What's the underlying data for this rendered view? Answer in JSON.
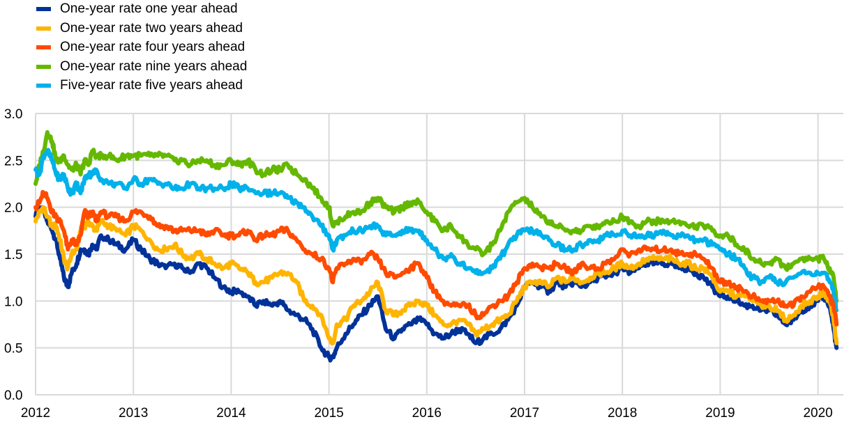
{
  "chart_data": {
    "type": "line",
    "title": "",
    "xlabel": "",
    "ylabel": "",
    "xlim": [
      2012.0,
      2020.25
    ],
    "ylim": [
      0.0,
      3.0
    ],
    "grid": true,
    "legend_position": "top-left",
    "x_ticks": [
      "2012",
      "2013",
      "2014",
      "2015",
      "2016",
      "2017",
      "2018",
      "2019",
      "2020"
    ],
    "y_ticks": [
      "0.0",
      "0.5",
      "1.0",
      "1.5",
      "2.0",
      "2.5",
      "3.0"
    ],
    "x": [
      2012.0,
      2012.04,
      2012.08,
      2012.12,
      2012.17,
      2012.21,
      2012.25,
      2012.29,
      2012.33,
      2012.37,
      2012.42,
      2012.46,
      2012.5,
      2012.54,
      2012.58,
      2012.62,
      2012.67,
      2012.75,
      2012.83,
      2012.92,
      2013.0,
      2013.08,
      2013.17,
      2013.25,
      2013.33,
      2013.42,
      2013.5,
      2013.58,
      2013.67,
      2013.75,
      2013.83,
      2013.92,
      2014.0,
      2014.08,
      2014.17,
      2014.25,
      2014.33,
      2014.42,
      2014.5,
      2014.58,
      2014.67,
      2014.75,
      2014.83,
      2014.92,
      2015.0,
      2015.04,
      2015.08,
      2015.17,
      2015.25,
      2015.33,
      2015.42,
      2015.5,
      2015.58,
      2015.67,
      2015.75,
      2015.83,
      2015.92,
      2016.0,
      2016.08,
      2016.17,
      2016.25,
      2016.33,
      2016.42,
      2016.5,
      2016.58,
      2016.67,
      2016.75,
      2016.83,
      2016.92,
      2017.0,
      2017.08,
      2017.17,
      2017.25,
      2017.33,
      2017.42,
      2017.5,
      2017.58,
      2017.67,
      2017.75,
      2017.83,
      2017.92,
      2018.0,
      2018.08,
      2018.17,
      2018.25,
      2018.33,
      2018.42,
      2018.5,
      2018.58,
      2018.67,
      2018.75,
      2018.83,
      2018.92,
      2019.0,
      2019.08,
      2019.17,
      2019.25,
      2019.33,
      2019.42,
      2019.5,
      2019.58,
      2019.67,
      2019.75,
      2019.83,
      2019.92,
      2020.0,
      2020.06,
      2020.12,
      2020.16,
      2020.19
    ],
    "series": [
      {
        "name": "One-year rate one year ahead",
        "color": "#003299",
        "values": [
          1.9,
          2.0,
          1.95,
          1.85,
          1.75,
          1.65,
          1.45,
          1.25,
          1.15,
          1.3,
          1.4,
          1.55,
          1.55,
          1.5,
          1.6,
          1.55,
          1.7,
          1.65,
          1.6,
          1.55,
          1.65,
          1.55,
          1.45,
          1.4,
          1.35,
          1.4,
          1.35,
          1.3,
          1.4,
          1.35,
          1.25,
          1.15,
          1.1,
          1.1,
          1.05,
          0.95,
          1.0,
          0.95,
          1.0,
          0.9,
          0.85,
          0.8,
          0.7,
          0.5,
          0.4,
          0.4,
          0.5,
          0.65,
          0.75,
          0.85,
          0.95,
          1.05,
          0.7,
          0.6,
          0.7,
          0.75,
          0.8,
          0.75,
          0.65,
          0.6,
          0.65,
          0.7,
          0.65,
          0.55,
          0.6,
          0.65,
          0.7,
          0.8,
          0.95,
          1.15,
          1.2,
          1.15,
          1.1,
          1.2,
          1.15,
          1.2,
          1.15,
          1.2,
          1.25,
          1.25,
          1.3,
          1.35,
          1.3,
          1.35,
          1.4,
          1.4,
          1.4,
          1.4,
          1.35,
          1.35,
          1.3,
          1.25,
          1.15,
          1.05,
          1.05,
          1.0,
          0.95,
          0.95,
          0.9,
          0.9,
          0.85,
          0.75,
          0.8,
          0.9,
          0.95,
          1.0,
          1.05,
          0.95,
          0.7,
          0.5
        ]
      },
      {
        "name": "One-year rate two years ahead",
        "color": "#FFB400",
        "values": [
          1.85,
          1.95,
          2.0,
          1.9,
          1.8,
          1.8,
          1.65,
          1.45,
          1.35,
          1.5,
          1.55,
          1.75,
          1.8,
          1.85,
          1.8,
          1.75,
          1.85,
          1.8,
          1.75,
          1.7,
          1.8,
          1.75,
          1.65,
          1.55,
          1.55,
          1.6,
          1.5,
          1.45,
          1.5,
          1.45,
          1.4,
          1.35,
          1.4,
          1.35,
          1.3,
          1.2,
          1.2,
          1.25,
          1.3,
          1.3,
          1.2,
          1.0,
          0.95,
          0.85,
          0.6,
          0.55,
          0.75,
          0.8,
          0.95,
          1.0,
          1.1,
          1.2,
          0.9,
          0.85,
          0.9,
          0.95,
          1.0,
          0.95,
          0.85,
          0.75,
          0.75,
          0.8,
          0.75,
          0.65,
          0.7,
          0.75,
          0.8,
          0.85,
          1.0,
          1.15,
          1.2,
          1.2,
          1.15,
          1.25,
          1.2,
          1.25,
          1.2,
          1.25,
          1.3,
          1.3,
          1.35,
          1.4,
          1.35,
          1.4,
          1.45,
          1.45,
          1.45,
          1.45,
          1.4,
          1.4,
          1.35,
          1.35,
          1.25,
          1.1,
          1.1,
          1.05,
          1.05,
          1.0,
          0.95,
          0.95,
          0.9,
          0.8,
          0.85,
          0.95,
          1.0,
          1.05,
          1.1,
          1.0,
          0.8,
          0.55
        ]
      },
      {
        "name": "One-year rate four years ahead",
        "color": "#FF4B00",
        "values": [
          2.0,
          2.05,
          2.15,
          2.1,
          1.95,
          1.9,
          1.85,
          1.75,
          1.55,
          1.65,
          1.6,
          1.7,
          1.95,
          1.9,
          1.95,
          1.85,
          1.95,
          1.9,
          1.9,
          1.85,
          1.95,
          1.95,
          1.9,
          1.8,
          1.8,
          1.75,
          1.75,
          1.75,
          1.75,
          1.7,
          1.75,
          1.7,
          1.7,
          1.7,
          1.75,
          1.65,
          1.7,
          1.7,
          1.75,
          1.75,
          1.65,
          1.55,
          1.5,
          1.45,
          1.35,
          1.2,
          1.35,
          1.4,
          1.45,
          1.4,
          1.5,
          1.45,
          1.3,
          1.25,
          1.3,
          1.35,
          1.4,
          1.25,
          1.1,
          1.0,
          0.95,
          0.95,
          0.95,
          0.85,
          0.85,
          0.95,
          1.0,
          1.05,
          1.2,
          1.35,
          1.4,
          1.35,
          1.35,
          1.4,
          1.35,
          1.3,
          1.4,
          1.35,
          1.35,
          1.4,
          1.45,
          1.55,
          1.5,
          1.55,
          1.55,
          1.55,
          1.55,
          1.55,
          1.5,
          1.5,
          1.5,
          1.45,
          1.35,
          1.2,
          1.2,
          1.15,
          1.1,
          1.05,
          1.0,
          1.0,
          1.0,
          0.95,
          0.95,
          1.05,
          1.1,
          1.15,
          1.15,
          1.05,
          0.95,
          0.75
        ]
      },
      {
        "name": "One-year rate nine years ahead",
        "color": "#65B800",
        "values": [
          2.25,
          2.45,
          2.6,
          2.8,
          2.7,
          2.5,
          2.5,
          2.55,
          2.45,
          2.4,
          2.45,
          2.35,
          2.5,
          2.45,
          2.6,
          2.55,
          2.55,
          2.55,
          2.5,
          2.55,
          2.55,
          2.55,
          2.55,
          2.55,
          2.55,
          2.5,
          2.5,
          2.45,
          2.5,
          2.5,
          2.45,
          2.45,
          2.5,
          2.45,
          2.5,
          2.4,
          2.35,
          2.4,
          2.4,
          2.45,
          2.35,
          2.3,
          2.2,
          2.1,
          2.0,
          1.8,
          1.85,
          1.9,
          1.95,
          1.95,
          2.05,
          2.1,
          2.0,
          1.95,
          2.0,
          2.05,
          2.05,
          1.95,
          1.85,
          1.75,
          1.8,
          1.7,
          1.6,
          1.55,
          1.5,
          1.6,
          1.75,
          1.95,
          2.05,
          2.1,
          2.0,
          1.9,
          1.85,
          1.8,
          1.75,
          1.75,
          1.75,
          1.8,
          1.8,
          1.85,
          1.85,
          1.9,
          1.85,
          1.8,
          1.85,
          1.85,
          1.85,
          1.85,
          1.85,
          1.8,
          1.8,
          1.8,
          1.75,
          1.7,
          1.7,
          1.6,
          1.55,
          1.45,
          1.4,
          1.4,
          1.45,
          1.35,
          1.4,
          1.45,
          1.45,
          1.45,
          1.45,
          1.35,
          1.25,
          1.0
        ]
      },
      {
        "name": "Five-year rate five years ahead",
        "color": "#00B1EA",
        "values": [
          2.4,
          2.35,
          2.55,
          2.6,
          2.5,
          2.35,
          2.3,
          2.35,
          2.2,
          2.15,
          2.25,
          2.15,
          2.3,
          2.35,
          2.35,
          2.4,
          2.3,
          2.25,
          2.25,
          2.2,
          2.3,
          2.25,
          2.3,
          2.25,
          2.25,
          2.2,
          2.2,
          2.25,
          2.2,
          2.2,
          2.2,
          2.2,
          2.25,
          2.2,
          2.2,
          2.15,
          2.15,
          2.15,
          2.15,
          2.1,
          2.05,
          2.0,
          1.9,
          1.8,
          1.7,
          1.55,
          1.65,
          1.7,
          1.75,
          1.75,
          1.8,
          1.8,
          1.7,
          1.7,
          1.75,
          1.75,
          1.75,
          1.65,
          1.55,
          1.45,
          1.5,
          1.4,
          1.35,
          1.3,
          1.3,
          1.35,
          1.45,
          1.6,
          1.7,
          1.75,
          1.75,
          1.7,
          1.65,
          1.6,
          1.55,
          1.55,
          1.6,
          1.65,
          1.65,
          1.7,
          1.7,
          1.75,
          1.7,
          1.7,
          1.7,
          1.7,
          1.75,
          1.7,
          1.7,
          1.7,
          1.65,
          1.65,
          1.6,
          1.55,
          1.5,
          1.45,
          1.35,
          1.25,
          1.2,
          1.25,
          1.2,
          1.2,
          1.25,
          1.3,
          1.3,
          1.3,
          1.3,
          1.2,
          1.1,
          0.9
        ]
      }
    ]
  }
}
